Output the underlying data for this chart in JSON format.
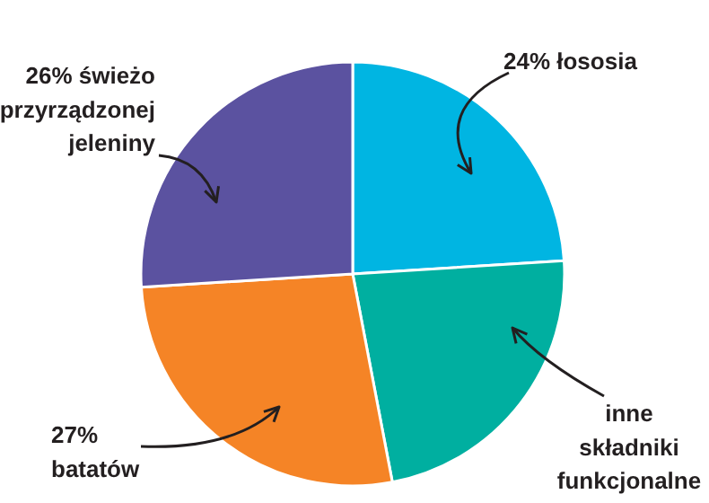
{
  "chart_data": {
    "type": "pie",
    "categories": [
      "łososia",
      "inne\nskładniki\nfunkcjonalne",
      "batatów",
      "świeżo\nprzyrządzonej\njeleniny"
    ],
    "values": [
      24,
      23,
      27,
      26
    ],
    "value_labels": [
      "24%",
      null,
      "27%",
      "26%"
    ],
    "colors": [
      "#00b5e2",
      "#00afa0",
      "#f58426",
      "#5b52a0"
    ]
  }
}
